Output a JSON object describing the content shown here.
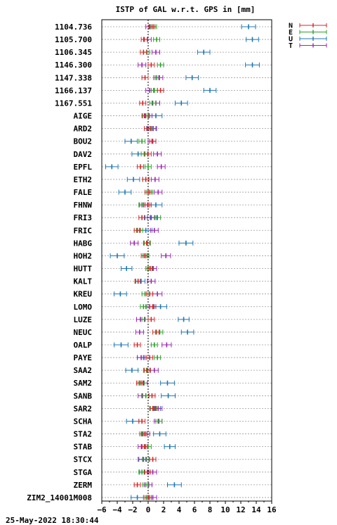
{
  "chart_data": {
    "type": "errorbar",
    "title": "ISTP of GAL w.r.t. GPS in [mm]",
    "xlim": [
      -6,
      16
    ],
    "xticks": [
      -6,
      -4,
      -2,
      0,
      2,
      4,
      6,
      8,
      10,
      12,
      14,
      16
    ],
    "grid": true,
    "legend_position": "top-right",
    "series": [
      {
        "name": "N",
        "color": "#d62728"
      },
      {
        "name": "E",
        "color": "#2ca02c"
      },
      {
        "name": "U",
        "color": "#1f77b4"
      },
      {
        "name": "T",
        "color": "#9b27b0"
      }
    ],
    "categories": [
      "1104.736",
      "1105.700",
      "1106.345",
      "1146.300",
      "1147.338",
      "1166.137",
      "1167.551",
      "AIGE",
      "ARD2",
      "BOU2",
      "DAV2",
      "EPFL",
      "ETH2",
      "FALE",
      "FHNW",
      "FRI3",
      "FRIC",
      "HABG",
      "HOH2",
      "HUTT",
      "KALT",
      "KREU",
      "LOMO",
      "LUZE",
      "NEUC",
      "OALP",
      "PAYE",
      "SAA2",
      "SAM2",
      "SANB",
      "SAR2",
      "SCHA",
      "STA2",
      "STAB",
      "STCX",
      "STGA",
      "ZERM",
      "ZIM2_14001M008"
    ],
    "values": {
      "N": [
        0.5,
        -0.5,
        -0.6,
        0.4,
        -0.4,
        1.6,
        -0.7,
        -0.4,
        -0.1,
        0.6,
        0.0,
        -1.0,
        -0.3,
        0.0,
        0.0,
        -0.8,
        -1.4,
        -0.2,
        -0.5,
        0.3,
        -1.3,
        0.2,
        0.6,
        0.4,
        1.0,
        -1.4,
        0.2,
        -0.1,
        -1.1,
        0.5,
        0.6,
        -0.8,
        -0.5,
        -0.5,
        0.6,
        -0.1,
        -1.4,
        0.0
      ],
      "E": [
        0.7,
        1.1,
        -0.2,
        1.6,
        1.1,
        0.8,
        0.6,
        -0.3,
        0.3,
        -0.8,
        -0.5,
        0.0,
        -0.3,
        0.2,
        -0.8,
        1.2,
        -1.1,
        -0.1,
        -0.3,
        0.1,
        -1.3,
        -0.4,
        -0.6,
        -0.4,
        1.5,
        0.8,
        1.2,
        -0.2,
        -0.9,
        -0.3,
        0.7,
        1.4,
        -0.7,
        0.0,
        -0.3,
        -0.8,
        -0.3,
        -0.2
      ],
      "U": [
        13.0,
        13.5,
        7.2,
        13.5,
        5.7,
        8.0,
        4.3,
        1.0,
        0.4,
        -2.2,
        -1.3,
        -4.7,
        -1.9,
        -3.0,
        1.0,
        0.3,
        -0.3,
        4.9,
        -4.0,
        -2.8,
        -1.0,
        -3.6,
        1.6,
        4.6,
        5.1,
        -3.5,
        -0.6,
        -2.1,
        2.5,
        2.6,
        0.9,
        -2.0,
        1.5,
        2.8,
        -0.6,
        -0.5,
        3.4,
        -1.4
      ],
      "T": [
        0.2,
        -0.1,
        1.0,
        -0.8,
        1.4,
        0.2,
        1.0,
        0.0,
        0.6,
        0.5,
        1.2,
        1.7,
        0.9,
        1.3,
        -0.6,
        0.4,
        0.8,
        -1.8,
        2.3,
        0.6,
        0.4,
        1.2,
        0.2,
        -1.0,
        -1.1,
        2.4,
        -0.9,
        0.8,
        -0.6,
        -0.8,
        1.3,
        1.3,
        -0.3,
        -0.8,
        -0.7,
        0.6,
        0.0,
        0.6
      ]
    },
    "error_halfwidths": {
      "N": [
        0.4,
        0.4,
        0.4,
        0.4,
        0.4,
        0.4,
        0.4,
        0.4,
        0.4,
        0.4,
        0.4,
        0.4,
        0.4,
        0.4,
        0.4,
        0.4,
        0.4,
        0.4,
        0.4,
        0.4,
        0.4,
        0.4,
        0.4,
        0.4,
        0.4,
        0.4,
        0.4,
        0.4,
        0.4,
        0.4,
        0.4,
        0.4,
        0.4,
        0.4,
        0.4,
        0.4,
        0.4,
        0.4
      ],
      "E": [
        0.4,
        0.4,
        0.4,
        0.4,
        0.4,
        0.4,
        0.4,
        0.4,
        0.4,
        0.4,
        0.4,
        0.4,
        0.4,
        0.4,
        0.4,
        0.4,
        0.4,
        0.4,
        0.4,
        0.4,
        0.4,
        0.4,
        0.4,
        0.4,
        0.4,
        0.4,
        0.4,
        0.4,
        0.4,
        0.4,
        0.4,
        0.4,
        0.4,
        0.4,
        0.4,
        0.4,
        0.4,
        0.4
      ],
      "U": [
        0.9,
        0.8,
        0.8,
        0.9,
        0.8,
        0.8,
        0.8,
        0.8,
        0.6,
        0.8,
        0.8,
        0.8,
        0.8,
        0.8,
        0.8,
        0.8,
        0.8,
        0.9,
        0.9,
        0.7,
        0.6,
        0.8,
        0.8,
        0.7,
        0.8,
        0.9,
        0.8,
        0.8,
        0.9,
        0.9,
        0.7,
        0.8,
        0.8,
        0.7,
        0.7,
        0.6,
        0.9,
        0.8
      ],
      "T": [
        0.5,
        0.5,
        0.5,
        0.5,
        0.5,
        0.5,
        0.5,
        0.5,
        0.5,
        0.5,
        0.5,
        0.5,
        0.5,
        0.5,
        0.5,
        0.5,
        0.5,
        0.5,
        0.6,
        0.5,
        0.5,
        0.6,
        0.5,
        0.5,
        0.5,
        0.6,
        0.5,
        0.5,
        0.5,
        0.5,
        0.5,
        0.5,
        0.5,
        0.5,
        0.5,
        0.5,
        0.5,
        0.5
      ]
    }
  },
  "footer": {
    "timestamp": "25-May-2022 18:30:44"
  }
}
